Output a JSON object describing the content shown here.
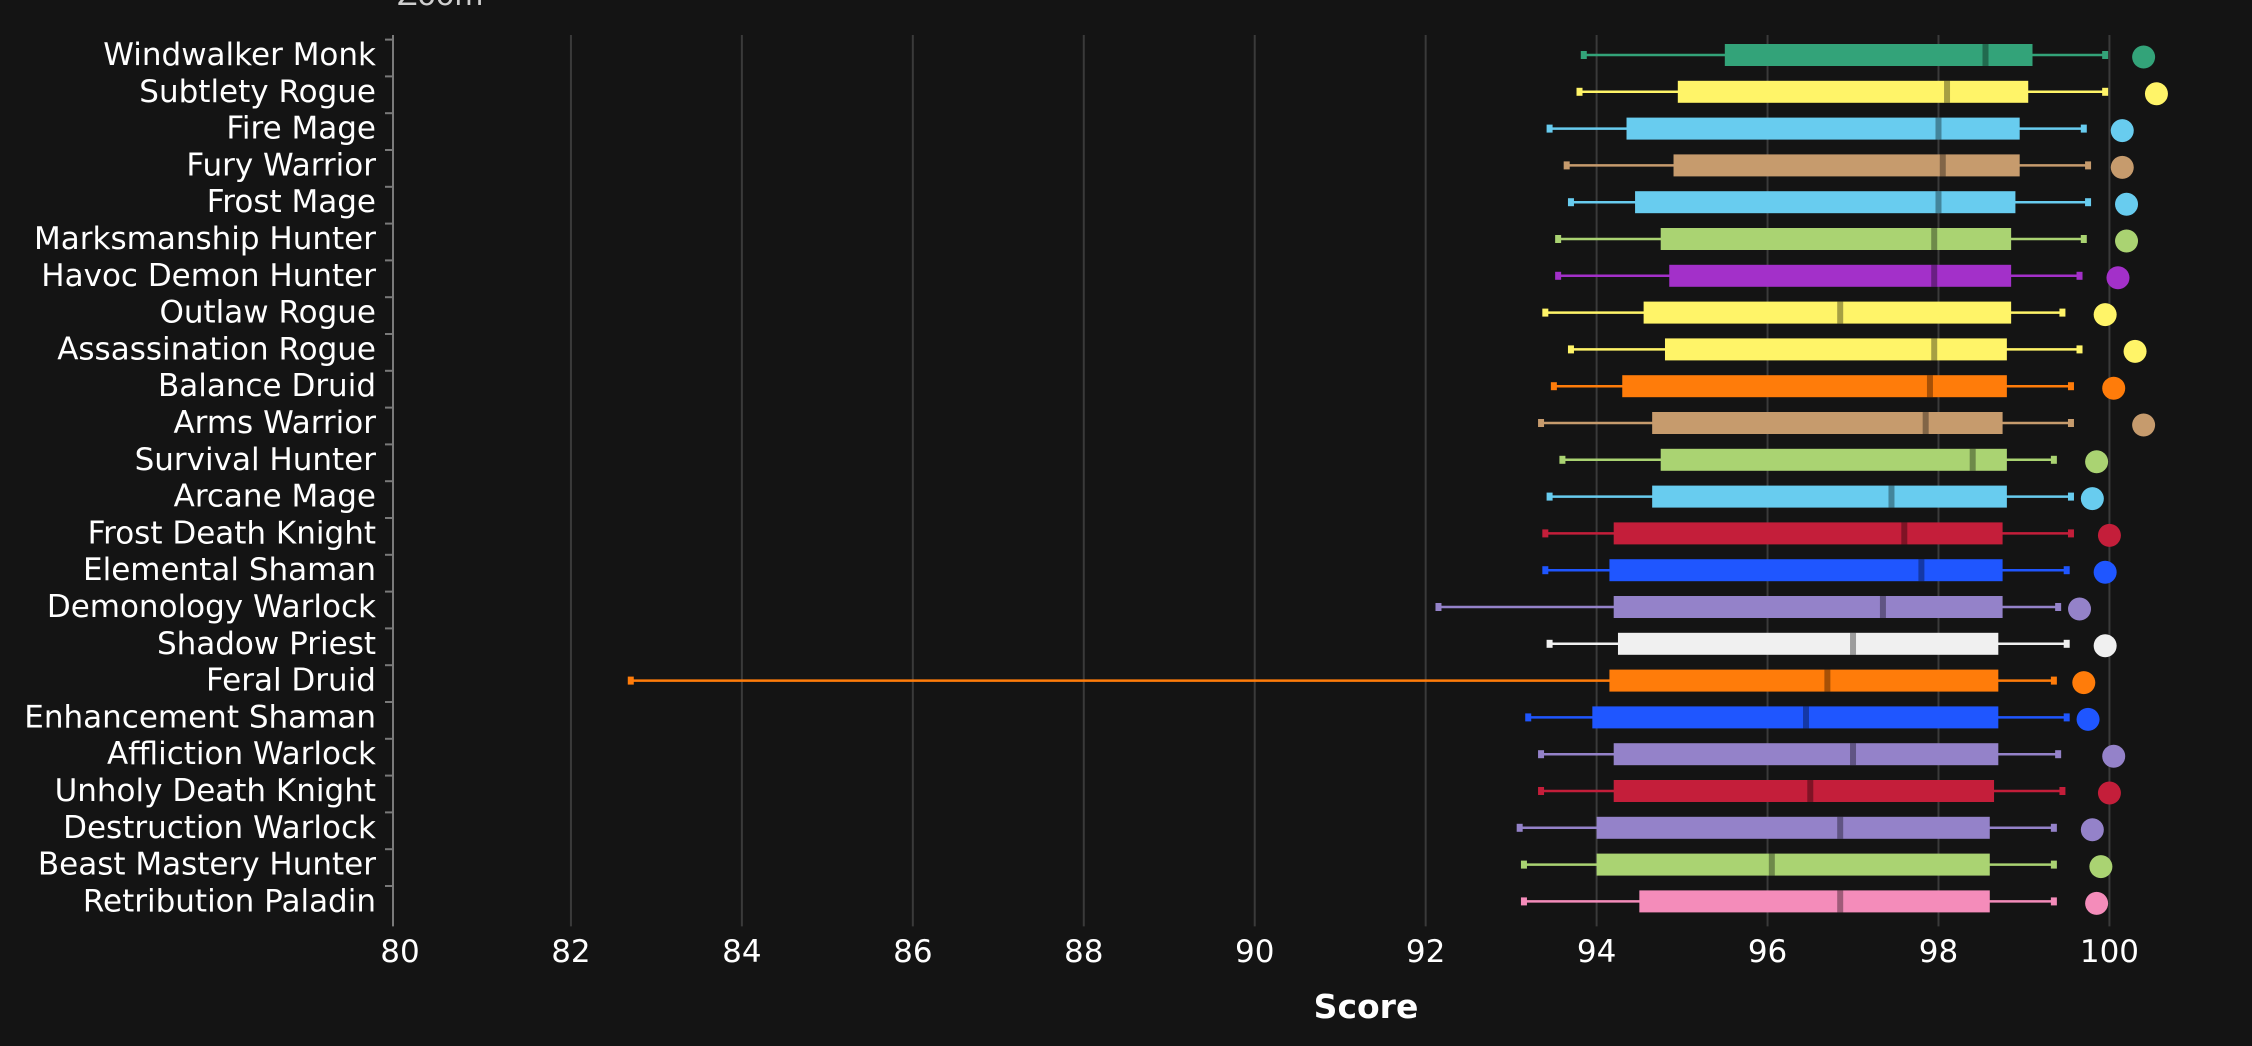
{
  "zoom_button": {
    "label": "Zoom"
  },
  "colors": {
    "background": "#141414",
    "grid": "#3a3a3a",
    "axis": "#7a7a7a",
    "text": "#ffffff"
  },
  "chart_data": {
    "type": "boxplot",
    "orientation": "horizontal",
    "title": "",
    "xlabel": "Score",
    "ylabel": "",
    "xlim": [
      80,
      101.2
    ],
    "xticks": [
      80,
      82,
      84,
      86,
      88,
      90,
      92,
      94,
      96,
      98,
      100
    ],
    "grid": true,
    "legend": "none",
    "series": [
      {
        "name": "Windwalker Monk",
        "color": "#33a379",
        "min": 93.85,
        "q1": 95.5,
        "median": 98.55,
        "q3": 99.1,
        "max": 99.95,
        "top": 100.4
      },
      {
        "name": "Subtlety Rogue",
        "color": "#fff468",
        "min": 93.8,
        "q1": 94.95,
        "median": 98.1,
        "q3": 99.05,
        "max": 99.95,
        "top": 100.55
      },
      {
        "name": "Fire Mage",
        "color": "#68ccef",
        "min": 93.45,
        "q1": 94.35,
        "median": 98.0,
        "q3": 98.95,
        "max": 99.7,
        "top": 100.15
      },
      {
        "name": "Fury Warrior",
        "color": "#c69b6d",
        "min": 93.65,
        "q1": 94.9,
        "median": 98.05,
        "q3": 98.95,
        "max": 99.75,
        "top": 100.15
      },
      {
        "name": "Frost Mage",
        "color": "#68ccef",
        "min": 93.7,
        "q1": 94.45,
        "median": 98.0,
        "q3": 98.9,
        "max": 99.75,
        "top": 100.2
      },
      {
        "name": "Marksmanship Hunter",
        "color": "#aad372",
        "min": 93.55,
        "q1": 94.75,
        "median": 97.95,
        "q3": 98.85,
        "max": 99.7,
        "top": 100.2
      },
      {
        "name": "Havoc Demon Hunter",
        "color": "#a330c9",
        "min": 93.55,
        "q1": 94.85,
        "median": 97.95,
        "q3": 98.85,
        "max": 99.65,
        "top": 100.1
      },
      {
        "name": "Outlaw Rogue",
        "color": "#fff468",
        "min": 93.4,
        "q1": 94.55,
        "median": 96.85,
        "q3": 98.85,
        "max": 99.45,
        "top": 99.95
      },
      {
        "name": "Assassination Rogue",
        "color": "#fff468",
        "min": 93.7,
        "q1": 94.8,
        "median": 97.95,
        "q3": 98.8,
        "max": 99.65,
        "top": 100.3
      },
      {
        "name": "Balance Druid",
        "color": "#ff7c0a",
        "min": 93.5,
        "q1": 94.3,
        "median": 97.9,
        "q3": 98.8,
        "max": 99.55,
        "top": 100.05
      },
      {
        "name": "Arms Warrior",
        "color": "#c69b6d",
        "min": 93.35,
        "q1": 94.65,
        "median": 97.85,
        "q3": 98.75,
        "max": 99.55,
        "top": 100.4
      },
      {
        "name": "Survival Hunter",
        "color": "#aad372",
        "min": 93.6,
        "q1": 94.75,
        "median": 98.4,
        "q3": 98.8,
        "max": 99.35,
        "top": 99.85
      },
      {
        "name": "Arcane Mage",
        "color": "#68ccef",
        "min": 93.45,
        "q1": 94.65,
        "median": 97.45,
        "q3": 98.8,
        "max": 99.55,
        "top": 99.8
      },
      {
        "name": "Frost Death Knight",
        "color": "#c41e3a",
        "min": 93.4,
        "q1": 94.2,
        "median": 97.6,
        "q3": 98.75,
        "max": 99.55,
        "top": 100.0
      },
      {
        "name": "Elemental Shaman",
        "color": "#1f56ff",
        "min": 93.4,
        "q1": 94.15,
        "median": 97.8,
        "q3": 98.75,
        "max": 99.5,
        "top": 99.95
      },
      {
        "name": "Demonology Warlock",
        "color": "#9482c9",
        "min": 92.15,
        "q1": 94.2,
        "median": 97.35,
        "q3": 98.75,
        "max": 99.4,
        "top": 99.65
      },
      {
        "name": "Shadow Priest",
        "color": "#f0f0f0",
        "min": 93.45,
        "q1": 94.25,
        "median": 97.0,
        "q3": 98.7,
        "max": 99.5,
        "top": 99.95
      },
      {
        "name": "Feral Druid",
        "color": "#ff7c0a",
        "min": 82.7,
        "q1": 94.15,
        "median": 96.7,
        "q3": 98.7,
        "max": 99.35,
        "top": 99.7
      },
      {
        "name": "Enhancement Shaman",
        "color": "#1f56ff",
        "min": 93.2,
        "q1": 93.95,
        "median": 96.45,
        "q3": 98.7,
        "max": 99.5,
        "top": 99.75
      },
      {
        "name": "Affliction Warlock",
        "color": "#9482c9",
        "min": 93.35,
        "q1": 94.2,
        "median": 97.0,
        "q3": 98.7,
        "max": 99.4,
        "top": 100.05
      },
      {
        "name": "Unholy Death Knight",
        "color": "#c41e3a",
        "min": 93.35,
        "q1": 94.2,
        "median": 96.5,
        "q3": 98.65,
        "max": 99.45,
        "top": 100.0
      },
      {
        "name": "Destruction Warlock",
        "color": "#9482c9",
        "min": 93.1,
        "q1": 94.0,
        "median": 96.85,
        "q3": 98.6,
        "max": 99.35,
        "top": 99.8
      },
      {
        "name": "Beast Mastery Hunter",
        "color": "#aad372",
        "min": 93.15,
        "q1": 94.0,
        "median": 96.05,
        "q3": 98.6,
        "max": 99.35,
        "top": 99.9
      },
      {
        "name": "Retribution Paladin",
        "color": "#f48cba",
        "min": 93.15,
        "q1": 94.5,
        "median": 96.85,
        "q3": 98.6,
        "max": 99.35,
        "top": 99.85
      }
    ]
  }
}
